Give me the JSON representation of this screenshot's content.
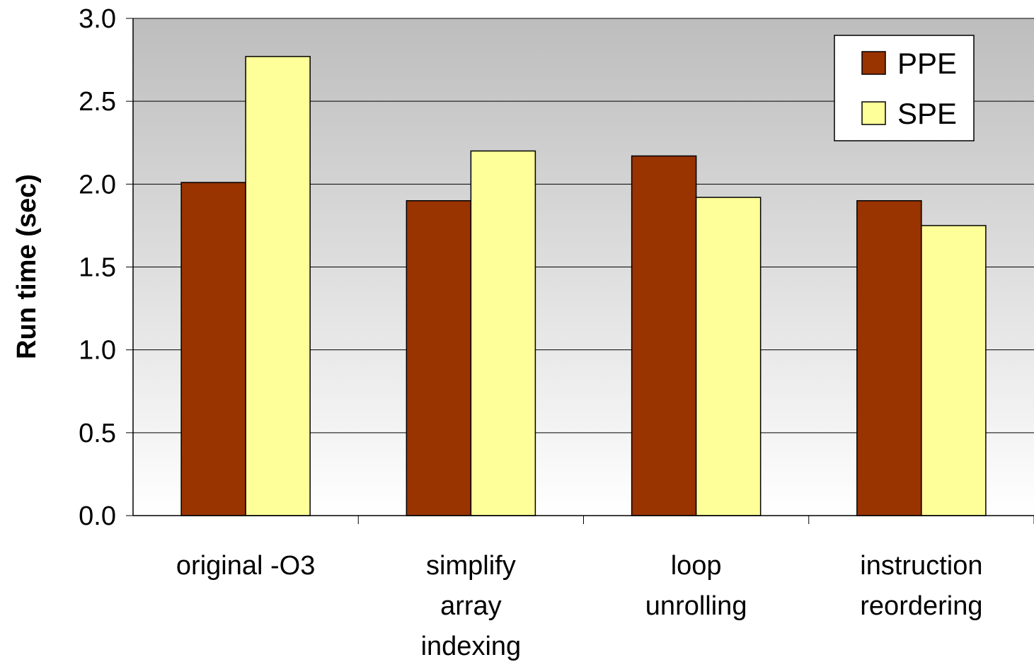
{
  "chart_data": {
    "type": "bar",
    "title": "",
    "xlabel": "",
    "ylabel": "Run time (sec)",
    "ylim": [
      0,
      3.0
    ],
    "yticks": [
      "0.0",
      "0.5",
      "1.0",
      "1.5",
      "2.0",
      "2.5",
      "3.0"
    ],
    "grid": true,
    "legend_position": "top-right",
    "categories": [
      [
        "original -O3"
      ],
      [
        "simplify",
        "array",
        "indexing"
      ],
      [
        "loop",
        "unrolling"
      ],
      [
        "instruction",
        "reordering"
      ]
    ],
    "series": [
      {
        "name": "PPE",
        "color": "#993300",
        "values": [
          2.01,
          1.9,
          2.17,
          1.9
        ]
      },
      {
        "name": "SPE",
        "color": "#FFFF99",
        "values": [
          2.77,
          2.2,
          1.92,
          1.75
        ]
      }
    ]
  }
}
